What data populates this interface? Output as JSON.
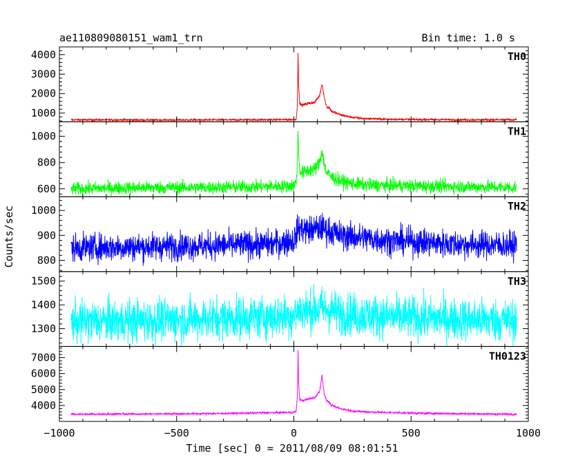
{
  "chart_data": {
    "type": "line",
    "title": "ae110809080151_wam1_trn",
    "subtitle": "Bin time: 1.0 s",
    "xlabel": "Time [sec] 0 = 2011/08/09 08:01:51",
    "ylabel": "Counts/sec",
    "xlim": [
      -1000,
      1000
    ],
    "x_ticks": [
      -1000,
      -500,
      0,
      500,
      1000
    ],
    "x_tick_labels": [
      "−1000",
      "−500",
      "0",
      "500",
      "1000"
    ],
    "grid": false,
    "panels": [
      {
        "name": "TH0",
        "color": "#ff0000",
        "ylim": [
          550,
          4400
        ],
        "y_ticks": [
          1000,
          2000,
          3000,
          4000
        ],
        "y_tick_labels": [
          "1000",
          "2000",
          "3000",
          "4000"
        ],
        "baseline": 650,
        "noise": 25,
        "x": [
          -950,
          -800,
          -600,
          -400,
          -200,
          -50,
          0,
          10,
          15,
          18,
          20,
          25,
          35,
          60,
          90,
          110,
          120,
          130,
          140,
          150,
          160,
          200,
          250,
          300,
          400,
          600,
          800,
          950
        ],
        "y": [
          650,
          650,
          640,
          645,
          650,
          660,
          660,
          700,
          1300,
          4200,
          2500,
          1500,
          1400,
          1500,
          1550,
          1900,
          2500,
          1800,
          1300,
          1300,
          1100,
          900,
          780,
          720,
          680,
          660,
          650,
          650
        ]
      },
      {
        "name": "TH1",
        "color": "#00ff00",
        "ylim": [
          540,
          1110
        ],
        "y_ticks": [
          600,
          800,
          1000
        ],
        "y_tick_labels": [
          "600",
          "800",
          "1000"
        ],
        "baseline": 610,
        "noise": 25,
        "x": [
          -950,
          -800,
          -600,
          -400,
          -200,
          -50,
          0,
          10,
          15,
          18,
          20,
          25,
          35,
          60,
          90,
          110,
          120,
          130,
          140,
          150,
          160,
          200,
          250,
          300,
          400,
          600,
          800,
          950
        ],
        "y": [
          600,
          605,
          610,
          610,
          615,
          620,
          625,
          650,
          800,
          1050,
          900,
          750,
          720,
          740,
          750,
          800,
          900,
          780,
          720,
          710,
          690,
          660,
          640,
          630,
          625,
          620,
          615,
          610
        ]
      },
      {
        "name": "TH2",
        "color": "#0000ff",
        "ylim": [
          755,
          1055
        ],
        "y_ticks": [
          800,
          900,
          1000
        ],
        "y_tick_labels": [
          "800",
          "900",
          "1000"
        ],
        "baseline": 855,
        "noise": 28,
        "x": [
          -950,
          -600,
          -300,
          -100,
          0,
          20,
          60,
          120,
          200,
          400,
          700,
          950
        ],
        "y": [
          850,
          855,
          860,
          865,
          880,
          930,
          920,
          930,
          900,
          880,
          865,
          860
        ]
      },
      {
        "name": "TH3",
        "color": "#00ffff",
        "ylim": [
          1225,
          1540
        ],
        "y_ticks": [
          1300,
          1400,
          1500
        ],
        "y_tick_labels": [
          "1300",
          "1400",
          "1500"
        ],
        "baseline": 1340,
        "noise": 45,
        "x": [
          -950,
          -600,
          -300,
          -100,
          0,
          20,
          60,
          120,
          200,
          400,
          700,
          950
        ],
        "y": [
          1330,
          1335,
          1345,
          1350,
          1355,
          1380,
          1375,
          1385,
          1365,
          1350,
          1340,
          1335
        ]
      },
      {
        "name": "TH0123",
        "color": "#ff00ff",
        "ylim": [
          3000,
          7700
        ],
        "y_ticks": [
          4000,
          5000,
          6000,
          7000
        ],
        "y_tick_labels": [
          "4000",
          "5000",
          "6000",
          "7000"
        ],
        "baseline": 3450,
        "noise": 30,
        "x": [
          -950,
          -800,
          -600,
          -400,
          -200,
          -50,
          0,
          10,
          15,
          18,
          20,
          25,
          35,
          60,
          90,
          110,
          120,
          130,
          140,
          150,
          160,
          200,
          250,
          300,
          400,
          600,
          800,
          950
        ],
        "y": [
          3450,
          3460,
          3470,
          3480,
          3520,
          3560,
          3560,
          3650,
          4500,
          7500,
          5500,
          4400,
          4300,
          4400,
          4500,
          4900,
          5900,
          4700,
          4300,
          4200,
          4000,
          3800,
          3650,
          3600,
          3560,
          3500,
          3470,
          3450
        ]
      }
    ]
  }
}
